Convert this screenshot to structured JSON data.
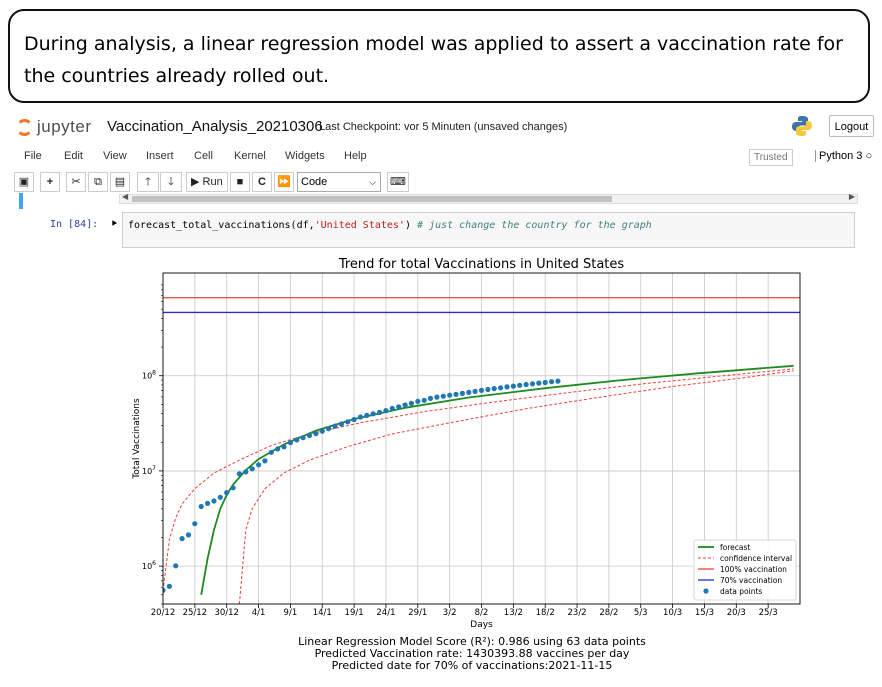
{
  "caption": {
    "line1": "During analysis, a linear regression model was applied to assert a vaccination rate for",
    "line2": "the countries already rolled out."
  },
  "header": {
    "logo_text": "jupyter",
    "notebook_name": "Vaccination_Analysis_20210306",
    "checkpoint": "Last Checkpoint: vor 5 Minuten  (unsaved changes)",
    "logout_label": "Logout"
  },
  "menu": {
    "items": [
      "File",
      "Edit",
      "View",
      "Insert",
      "Cell",
      "Kernel",
      "Widgets",
      "Help"
    ],
    "trusted": "Trusted",
    "kernel": "Python 3"
  },
  "toolbar": {
    "run_label": "Run",
    "cell_type": "Code"
  },
  "cell": {
    "prompt": "In [84]:",
    "code_fn": "forecast_total_vaccinations(df,",
    "code_arg": "'United States'",
    "code_close": ")",
    "code_comment": "# just change the country for the graph"
  },
  "chart_data": {
    "type": "line",
    "title": "Trend for total Vaccinations in United States",
    "xlabel": "Days",
    "ylabel": "Total Vaccinations",
    "y_scale": "log",
    "ylim": [
      400000,
      1200000000
    ],
    "y_ticks": [
      {
        "value": 1000000,
        "base": "10",
        "exp": "6"
      },
      {
        "value": 10000000,
        "base": "10",
        "exp": "7"
      },
      {
        "value": 100000000,
        "base": "10",
        "exp": "8"
      }
    ],
    "x_ticks": [
      "20/12",
      "25/12",
      "30/12",
      "4/1",
      "9/1",
      "14/1",
      "19/1",
      "24/1",
      "29/1",
      "3/2",
      "8/2",
      "13/2",
      "18/2",
      "23/2",
      "28/2",
      "5/3",
      "10/3",
      "15/3",
      "20/3",
      "25/3"
    ],
    "x_range_days": [
      "2020-12-20",
      "2021-03-30"
    ],
    "grid": true,
    "legend_position": "lower right",
    "legend": [
      "forecast",
      "confidence interval",
      "100% vaccination",
      "70% vaccination",
      "data points"
    ],
    "colors": {
      "forecast": "#1f8a1f",
      "confidence": "#e8423c",
      "full": "#e8423c",
      "seventy": "#2b2bd9",
      "points": "#1f77b4"
    },
    "hlines": {
      "full_vaccination": 660000000,
      "seventy_percent": 462000000
    },
    "forecast": {
      "x": [
        "2020-12-26",
        "2020-12-27",
        "2020-12-28",
        "2020-12-29",
        "2020-12-30",
        "2020-12-31",
        "2021-01-02",
        "2021-01-04",
        "2021-01-08",
        "2021-01-13",
        "2021-01-19",
        "2021-01-27",
        "2021-02-06",
        "2021-02-18",
        "2021-03-02",
        "2021-03-14",
        "2021-03-29"
      ],
      "y": [
        500000,
        1200000,
        2400000,
        4000000,
        5600000,
        7200000,
        10200000,
        13300000,
        19000000,
        26500000,
        35000000,
        46000000,
        59000000,
        74000000,
        90000000,
        106000000,
        127000000
      ]
    },
    "confidence_upper": {
      "x": [
        "2020-12-20",
        "2020-12-21",
        "2020-12-22",
        "2020-12-23",
        "2020-12-25",
        "2020-12-28",
        "2021-01-01",
        "2021-01-06",
        "2021-01-12",
        "2021-01-20",
        "2021-01-30",
        "2021-02-10",
        "2021-02-22",
        "2021-03-06",
        "2021-03-18",
        "2021-03-29"
      ],
      "y": [
        550000,
        1900000,
        3200000,
        4500000,
        6500000,
        9500000,
        13000000,
        18500000,
        24500000,
        32000000,
        42000000,
        53000000,
        67000000,
        83000000,
        100000000,
        118000000
      ]
    },
    "confidence_lower": {
      "x": [
        "2021-01-01",
        "2021-01-02",
        "2021-01-03",
        "2021-01-05",
        "2021-01-08",
        "2021-01-12",
        "2021-01-18",
        "2021-01-25",
        "2021-02-04",
        "2021-02-15",
        "2021-02-27",
        "2021-03-10",
        "2021-03-21",
        "2021-03-29"
      ],
      "y": [
        400000,
        2400000,
        4000000,
        6500000,
        9500000,
        13000000,
        18000000,
        24500000,
        33000000,
        45000000,
        60000000,
        77000000,
        95000000,
        113000000
      ]
    },
    "data_points": {
      "x": [
        "2020-12-20",
        "2020-12-21",
        "2020-12-22",
        "2020-12-23",
        "2020-12-24",
        "2020-12-25",
        "2020-12-26",
        "2020-12-27",
        "2020-12-28",
        "2020-12-29",
        "2020-12-30",
        "2020-12-31",
        "2021-01-01",
        "2021-01-02",
        "2021-01-03",
        "2021-01-04",
        "2021-01-05",
        "2021-01-06",
        "2021-01-07",
        "2021-01-08",
        "2021-01-09",
        "2021-01-10",
        "2021-01-11",
        "2021-01-12",
        "2021-01-13",
        "2021-01-14",
        "2021-01-15",
        "2021-01-16",
        "2021-01-17",
        "2021-01-18",
        "2021-01-19",
        "2021-01-20",
        "2021-01-21",
        "2021-01-22",
        "2021-01-23",
        "2021-01-24",
        "2021-01-25",
        "2021-01-26",
        "2021-01-27",
        "2021-01-28",
        "2021-01-29",
        "2021-01-30",
        "2021-01-31",
        "2021-02-01",
        "2021-02-02",
        "2021-02-03",
        "2021-02-04",
        "2021-02-05",
        "2021-02-06",
        "2021-02-07",
        "2021-02-08",
        "2021-02-09",
        "2021-02-10",
        "2021-02-11",
        "2021-02-12",
        "2021-02-13",
        "2021-02-14",
        "2021-02-15",
        "2021-02-16",
        "2021-02-17",
        "2021-02-18",
        "2021-02-19",
        "2021-02-20"
      ],
      "y": [
        556000,
        614000,
        1008000,
        1944000,
        2128000,
        2790000,
        4225000,
        4564000,
        4837000,
        5280000,
        5919000,
        6645000,
        9327000,
        9760000,
        10540000,
        11600000,
        12730000,
        15680000,
        17050000,
        17940000,
        19800000,
        21170000,
        22340000,
        23540000,
        24650000,
        26200000,
        27870000,
        29580000,
        31120000,
        32780000,
        34720000,
        36820000,
        38320000,
        39780000,
        41210000,
        43050000,
        45380000,
        47180000,
        49210000,
        51250000,
        53770000,
        55220000,
        57740000,
        59590000,
        61000000,
        62450000,
        63850000,
        65210000,
        66810000,
        68450000,
        70100000,
        71650000,
        73200000,
        74750000,
        76300000,
        77900000,
        79400000,
        80800000,
        82300000,
        83700000,
        85000000,
        86500000,
        87900000
      ]
    }
  },
  "stats": {
    "line1": "Linear Regression Model Score (R²): 0.986 using 63 data points",
    "line2": "Predicted Vaccination rate: 1430393.88 vaccines per day",
    "line3": "Predicted date for 70% of vaccinations:2021-11-15"
  }
}
